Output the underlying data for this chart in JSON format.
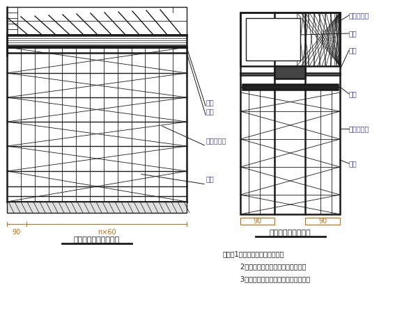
{
  "bg_color": "#ffffff",
  "line_color": "#1a1a1a",
  "orange_color": "#cc6600",
  "blue_color": "#4444aa",
  "title1": "叠梁施工文架横断面图",
  "title2": "叠梁施工文架立面图",
  "label_heng": "横梁",
  "label_zong": "纵梁",
  "label_koukou": "碗扣式支架",
  "label_diezhu": "墩柱",
  "label_anquan": "安全防护网",
  "label_cemold": "侧模",
  "note_line1": "说明：1、本图尺寸均以厘米计，",
  "note_line2": "        2、支架底都坐在处理好的地基上，",
  "note_line3": "        3、支架高度根据墩柱高度进行调整。",
  "dim_90_left": "90",
  "dim_n60": "n×60",
  "dim_90_r1": "90",
  "dim_90_r2": "90"
}
